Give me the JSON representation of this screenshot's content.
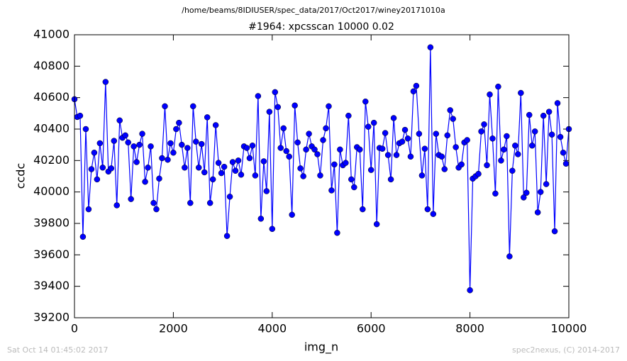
{
  "chart_data": {
    "type": "line",
    "suptitle": "/home/beams/8IDIUSER/spec_data/2017/Oct2017/winey20171010a",
    "title": "#1964: xpcsscan 10000 0.02",
    "xlabel": "img_n",
    "ylabel": "ccdc",
    "footer_left": "Sat Oct 14 01:45:02 2017",
    "footer_right": "spec2nexus, (C) 2014-2017",
    "xlim": [
      0,
      10000
    ],
    "xticks": [
      0,
      2000,
      4000,
      6000,
      8000,
      10000
    ],
    "ylim": [
      39200,
      41000
    ],
    "yticks": [
      39200,
      39400,
      39600,
      39800,
      40000,
      40200,
      40400,
      40600,
      40800,
      41000
    ],
    "x": [
      0,
      57,
      114,
      171,
      229,
      286,
      343,
      400,
      457,
      514,
      571,
      629,
      686,
      743,
      800,
      857,
      914,
      971,
      1029,
      1086,
      1143,
      1200,
      1257,
      1314,
      1371,
      1429,
      1486,
      1543,
      1600,
      1657,
      1714,
      1771,
      1829,
      1886,
      1943,
      2000,
      2057,
      2114,
      2171,
      2229,
      2286,
      2343,
      2400,
      2457,
      2514,
      2571,
      2629,
      2686,
      2743,
      2800,
      2857,
      2914,
      2971,
      3029,
      3086,
      3143,
      3200,
      3257,
      3314,
      3371,
      3429,
      3486,
      3543,
      3600,
      3657,
      3714,
      3771,
      3829,
      3886,
      3943,
      4000,
      4057,
      4114,
      4171,
      4229,
      4286,
      4343,
      4400,
      4457,
      4514,
      4571,
      4629,
      4686,
      4743,
      4800,
      4857,
      4914,
      4971,
      5029,
      5086,
      5143,
      5200,
      5257,
      5314,
      5371,
      5429,
      5486,
      5543,
      5600,
      5657,
      5714,
      5771,
      5829,
      5886,
      5943,
      6000,
      6057,
      6114,
      6171,
      6229,
      6286,
      6343,
      6400,
      6457,
      6514,
      6571,
      6629,
      6686,
      6743,
      6800,
      6857,
      6914,
      6971,
      7029,
      7086,
      7143,
      7200,
      7257,
      7314,
      7371,
      7429,
      7486,
      7543,
      7600,
      7657,
      7714,
      7771,
      7829,
      7886,
      7943,
      8000,
      8057,
      8114,
      8171,
      8229,
      8286,
      8343,
      8400,
      8457,
      8514,
      8571,
      8629,
      8686,
      8743,
      8800,
      8857,
      8914,
      8971,
      9029,
      9086,
      9143,
      9200,
      9257,
      9314,
      9371,
      9429,
      9486,
      9543,
      9600,
      9657,
      9714,
      9771,
      9829,
      9886,
      9943,
      10000
    ],
    "series": [
      {
        "color": "#0000ff",
        "values": [
          40590,
          40477,
          40485,
          39715,
          40400,
          39890,
          40145,
          40250,
          40080,
          40310,
          40155,
          40700,
          40130,
          40150,
          40325,
          39915,
          40455,
          40345,
          40360,
          40315,
          39955,
          40290,
          40190,
          40300,
          40370,
          40065,
          40155,
          40290,
          39930,
          39890,
          40085,
          40215,
          40545,
          40205,
          40310,
          40250,
          40400,
          40440,
          40300,
          40155,
          40280,
          39930,
          40545,
          40320,
          40155,
          40305,
          40125,
          40475,
          39930,
          40080,
          40425,
          40185,
          40120,
          40160,
          39720,
          39970,
          40190,
          40135,
          40200,
          40110,
          40290,
          40280,
          40215,
          40295,
          40105,
          40610,
          39830,
          40195,
          40005,
          40510,
          39765,
          40635,
          40540,
          40280,
          40405,
          40260,
          40225,
          39855,
          40550,
          40315,
          40150,
          40100,
          40270,
          40370,
          40290,
          40270,
          40240,
          40105,
          40330,
          40405,
          40545,
          40010,
          40175,
          39740,
          40270,
          40170,
          40185,
          40485,
          40080,
          40030,
          40285,
          40270,
          39890,
          40575,
          40415,
          40140,
          40440,
          39795,
          40280,
          40275,
          40375,
          40235,
          40080,
          40470,
          40235,
          40310,
          40320,
          40395,
          40340,
          40225,
          40640,
          40675,
          40370,
          40105,
          40275,
          39890,
          40920,
          39860,
          40370,
          40235,
          40225,
          40145,
          40360,
          40520,
          40465,
          40285,
          40155,
          40175,
          40315,
          40330,
          39375,
          40085,
          40100,
          40115,
          40385,
          40430,
          40170,
          40620,
          40340,
          39990,
          40670,
          40200,
          40270,
          40355,
          39590,
          40135,
          40295,
          40240,
          40630,
          39965,
          39995,
          40490,
          40295,
          40385,
          39870,
          40000,
          40485,
          40050,
          40510,
          40365,
          39750,
          40565,
          40350,
          40250,
          40180,
          40400
        ]
      }
    ]
  }
}
